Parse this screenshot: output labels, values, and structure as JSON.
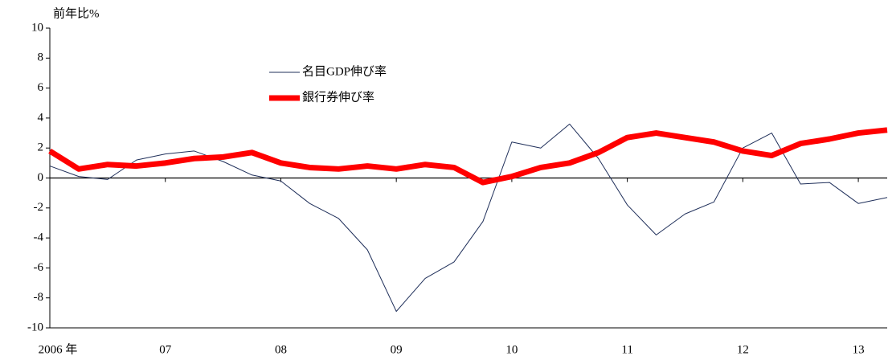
{
  "chart_data": {
    "type": "line",
    "y_label": "前年比%",
    "categories": [
      "2006 年",
      null,
      null,
      null,
      "07",
      null,
      null,
      null,
      "08",
      null,
      null,
      null,
      "09",
      null,
      null,
      null,
      "10",
      null,
      null,
      null,
      "11",
      null,
      null,
      null,
      "12",
      null,
      null,
      null,
      "13",
      null
    ],
    "series": [
      {
        "name": "名目GDP伸び率",
        "color": "#1f2f5a",
        "width": 1,
        "values": [
          0.8,
          0.1,
          -0.1,
          1.2,
          1.6,
          1.8,
          1.1,
          0.2,
          -0.2,
          -1.7,
          -2.7,
          -4.8,
          -8.9,
          -6.7,
          -5.6,
          -2.9,
          2.4,
          2.0,
          3.6,
          1.3,
          -1.8,
          -3.8,
          -2.4,
          -1.6,
          2.0,
          3.0,
          -0.4,
          -0.3,
          -1.7,
          -1.3
        ]
      },
      {
        "name": "銀行券伸び率",
        "color": "#ff0000",
        "width": 7,
        "values": [
          1.8,
          0.6,
          0.9,
          0.8,
          1.0,
          1.3,
          1.4,
          1.7,
          1.0,
          0.7,
          0.6,
          0.8,
          0.6,
          0.9,
          0.7,
          -0.3,
          0.1,
          0.7,
          1.0,
          1.7,
          2.7,
          3.0,
          2.7,
          2.4,
          1.8,
          1.5,
          2.3,
          2.6,
          3.0,
          3.2
        ]
      }
    ],
    "ylim": [
      -10,
      10
    ],
    "yticks": [
      -10,
      -8,
      -6,
      -4,
      -2,
      0,
      2,
      4,
      6,
      8,
      10
    ]
  }
}
